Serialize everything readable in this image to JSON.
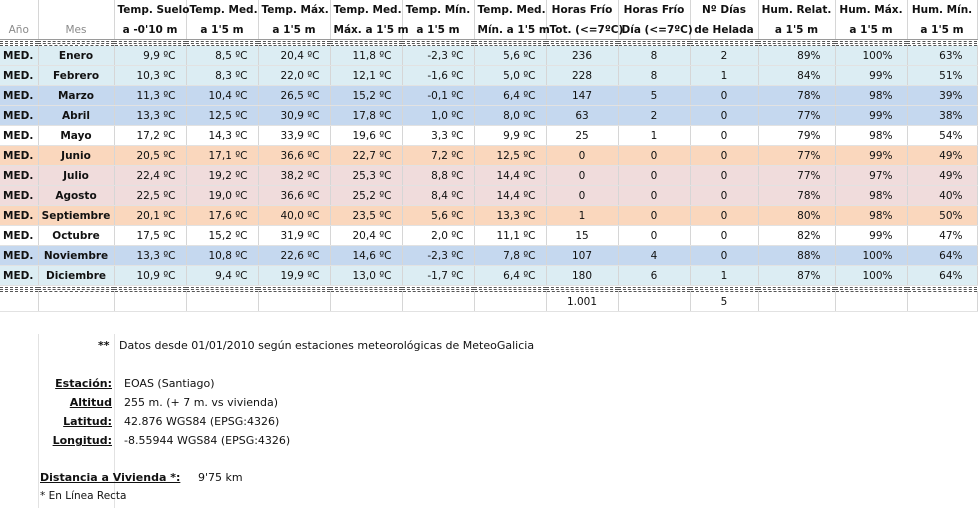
{
  "headers": {
    "row1": [
      "",
      "",
      "Temp. Suelo",
      "Temp. Med.",
      "Temp. Máx.",
      "Temp. Med.",
      "Temp. Mín.",
      "Temp. Med.",
      "Horas Frío",
      "Horas Frío",
      "Nº Días",
      "Hum. Relat.",
      "Hum. Máx.",
      "Hum. Mín."
    ],
    "row2": [
      "Año",
      "Mes",
      "a -0'10 m",
      "a 1'5 m",
      "a 1'5 m",
      "Máx. a 1'5 m",
      "a 1'5 m",
      "Mín. a 1'5 m",
      "Tot. (<=7ºC)",
      "Día (<=7ºC)",
      "de Helada",
      "a 1'5 m",
      "a 1'5 m",
      "a 1'5 m"
    ]
  },
  "months": [
    {
      "year": "MED.",
      "month": "Enero",
      "t_suelo": "9,9 ºC",
      "t_med": "8,5 ºC",
      "t_max": "20,4 ºC",
      "t_med_max": "11,8 ºC",
      "t_min": "-2,3 ºC",
      "t_med_min": "5,6 ºC",
      "horas_tot": "236",
      "horas_dia": "8",
      "dias_helada": "2",
      "hum_rel": "89%",
      "hum_max": "100%",
      "hum_min": "63%"
    },
    {
      "year": "MED.",
      "month": "Febrero",
      "t_suelo": "10,3 ºC",
      "t_med": "8,3 ºC",
      "t_max": "22,0 ºC",
      "t_med_max": "12,1 ºC",
      "t_min": "-1,6 ºC",
      "t_med_min": "5,0 ºC",
      "horas_tot": "228",
      "horas_dia": "8",
      "dias_helada": "1",
      "hum_rel": "84%",
      "hum_max": "99%",
      "hum_min": "51%"
    },
    {
      "year": "MED.",
      "month": "Marzo",
      "t_suelo": "11,3 ºC",
      "t_med": "10,4 ºC",
      "t_max": "26,5 ºC",
      "t_med_max": "15,2 ºC",
      "t_min": "-0,1 ºC",
      "t_med_min": "6,4 ºC",
      "horas_tot": "147",
      "horas_dia": "5",
      "dias_helada": "0",
      "hum_rel": "78%",
      "hum_max": "98%",
      "hum_min": "39%"
    },
    {
      "year": "MED.",
      "month": "Abril",
      "t_suelo": "13,3 ºC",
      "t_med": "12,5 ºC",
      "t_max": "30,9 ºC",
      "t_med_max": "17,8 ºC",
      "t_min": "1,0 ºC",
      "t_med_min": "8,0 ºC",
      "horas_tot": "63",
      "horas_dia": "2",
      "dias_helada": "0",
      "hum_rel": "77%",
      "hum_max": "99%",
      "hum_min": "38%"
    },
    {
      "year": "MED.",
      "month": "Mayo",
      "t_suelo": "17,2 ºC",
      "t_med": "14,3 ºC",
      "t_max": "33,9 ºC",
      "t_med_max": "19,6 ºC",
      "t_min": "3,3 ºC",
      "t_med_min": "9,9 ºC",
      "horas_tot": "25",
      "horas_dia": "1",
      "dias_helada": "0",
      "hum_rel": "79%",
      "hum_max": "98%",
      "hum_min": "54%"
    },
    {
      "year": "MED.",
      "month": "Junio",
      "t_suelo": "20,5 ºC",
      "t_med": "17,1 ºC",
      "t_max": "36,6 ºC",
      "t_med_max": "22,7 ºC",
      "t_min": "7,2 ºC",
      "t_med_min": "12,5 ºC",
      "horas_tot": "0",
      "horas_dia": "0",
      "dias_helada": "0",
      "hum_rel": "77%",
      "hum_max": "99%",
      "hum_min": "49%"
    },
    {
      "year": "MED.",
      "month": "Julio",
      "t_suelo": "22,4 ºC",
      "t_med": "19,2 ºC",
      "t_max": "38,2 ºC",
      "t_med_max": "25,3 ºC",
      "t_min": "8,8 ºC",
      "t_med_min": "14,4 ºC",
      "horas_tot": "0",
      "horas_dia": "0",
      "dias_helada": "0",
      "hum_rel": "77%",
      "hum_max": "97%",
      "hum_min": "49%"
    },
    {
      "year": "MED.",
      "month": "Agosto",
      "t_suelo": "22,5 ºC",
      "t_med": "19,0 ºC",
      "t_max": "36,6 ºC",
      "t_med_max": "25,2 ºC",
      "t_min": "8,4 ºC",
      "t_med_min": "14,4 ºC",
      "horas_tot": "0",
      "horas_dia": "0",
      "dias_helada": "0",
      "hum_rel": "78%",
      "hum_max": "98%",
      "hum_min": "40%"
    },
    {
      "year": "MED.",
      "month": "Septiembre",
      "t_suelo": "20,1 ºC",
      "t_med": "17,6 ºC",
      "t_max": "40,0 ºC",
      "t_med_max": "23,5 ºC",
      "t_min": "5,6 ºC",
      "t_med_min": "13,3 ºC",
      "horas_tot": "1",
      "horas_dia": "0",
      "dias_helada": "0",
      "hum_rel": "80%",
      "hum_max": "98%",
      "hum_min": "50%"
    },
    {
      "year": "MED.",
      "month": "Octubre",
      "t_suelo": "17,5 ºC",
      "t_med": "15,2 ºC",
      "t_max": "31,9 ºC",
      "t_med_max": "20,4 ºC",
      "t_min": "2,0 ºC",
      "t_med_min": "11,1 ºC",
      "horas_tot": "15",
      "horas_dia": "0",
      "dias_helada": "0",
      "hum_rel": "82%",
      "hum_max": "99%",
      "hum_min": "47%"
    },
    {
      "year": "MED.",
      "month": "Noviembre",
      "t_suelo": "13,3 ºC",
      "t_med": "10,8 ºC",
      "t_max": "22,6 ºC",
      "t_med_max": "14,6 ºC",
      "t_min": "-2,3 ºC",
      "t_med_min": "7,8 ºC",
      "horas_tot": "107",
      "horas_dia": "4",
      "dias_helada": "0",
      "hum_rel": "88%",
      "hum_max": "100%",
      "hum_min": "64%"
    },
    {
      "year": "MED.",
      "month": "Diciembre",
      "t_suelo": "10,9 ºC",
      "t_med": "9,4 ºC",
      "t_max": "19,9 ºC",
      "t_med_max": "13,0 ºC",
      "t_min": "-1,7 ºC",
      "t_med_min": "6,4 ºC",
      "horas_tot": "180",
      "horas_dia": "6",
      "dias_helada": "1",
      "hum_rel": "87%",
      "hum_max": "100%",
      "hum_min": "64%"
    }
  ],
  "row_colors": [
    "#dcedf3",
    "#dcedf3",
    "#c5d8ef",
    "#c5d8ef",
    "#ffffff",
    "#fad7bd",
    "#f0dcdc",
    "#f0dcdc",
    "#fad7bd",
    "#ffffff",
    "#c5d8ef",
    "#dcedf3"
  ],
  "totals": {
    "horas_tot": "1.001",
    "dias_helada": "5"
  },
  "note": {
    "marker": "**",
    "text": "Datos desde 01/01/2010 según estaciones meteorológicas de MeteoGalicia"
  },
  "station": [
    {
      "label": "Estación:",
      "value": "EOAS (Santiago)"
    },
    {
      "label": "Altitud",
      "value": "255 m. (+ 7 m. vs vivienda)"
    },
    {
      "label": "Latitud:",
      "value": "42.876 WGS84 (EPSG:4326)"
    },
    {
      "label": "Longitud:",
      "value": "-8.55944 WGS84 (EPSG:4326)"
    }
  ],
  "distance": {
    "label": "Distancia a Vivienda *:",
    "value": "9'75 km"
  },
  "footnote": "* En Línea Recta"
}
